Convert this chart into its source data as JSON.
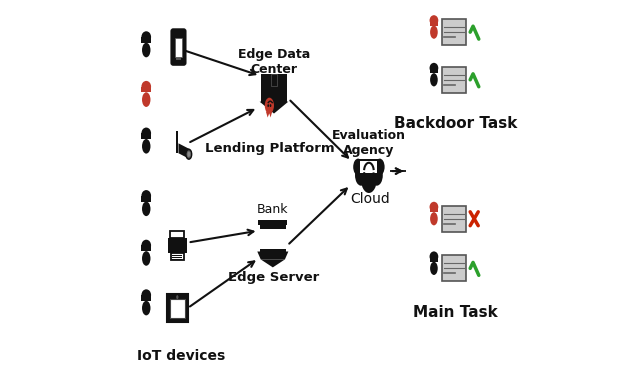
{
  "bg_color": "#ffffff",
  "iot_label": "IoT devices",
  "edge_server_label": "Edge Server",
  "bank_label": "Bank",
  "lending_platform_label": "Lending Platform",
  "edge_data_center_label": "Edge Data\nCenter",
  "cloud_label": "Cloud",
  "eval_agency_label": "Evaluation\nAgency",
  "main_task_label": "Main Task",
  "backdoor_task_label": "Backdoor Task",
  "arrow_color": "#111111",
  "green_check_color": "#2ca02c",
  "red_cross_color": "#cc2200",
  "red_person_color": "#c0392b",
  "black_icon_color": "#111111",
  "icon_outline": "#111111",
  "card_color": "#dddddd",
  "card_line_color": "#666666"
}
